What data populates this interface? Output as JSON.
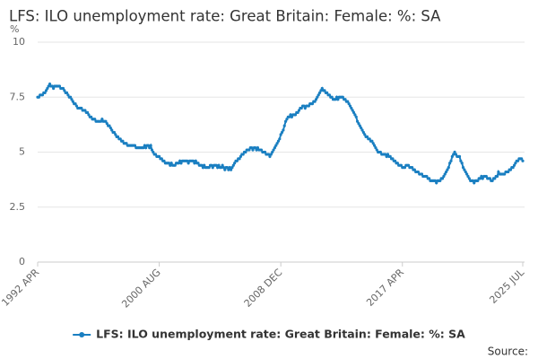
{
  "chart_data": {
    "type": "line",
    "title": "LFS: ILO unemployment rate: Great Britain: Female: %: SA",
    "y_label": "%",
    "source_label": "Source:",
    "categories": [
      "1992 APR",
      null,
      null,
      null,
      null,
      null,
      null,
      null,
      null,
      null,
      null,
      null,
      null,
      null,
      null,
      null,
      null,
      null,
      null,
      null,
      null,
      null,
      null,
      null,
      null,
      null,
      null,
      null,
      null,
      null,
      null,
      null,
      null,
      null,
      null,
      null,
      null,
      null,
      null,
      null,
      null,
      null,
      null,
      null,
      null,
      null,
      null,
      null,
      null,
      null,
      null,
      null,
      null,
      null,
      null,
      null,
      null,
      null,
      null,
      null,
      null,
      null,
      null,
      null,
      null,
      null,
      null,
      null,
      null,
      null,
      null,
      null,
      null,
      null,
      null,
      null,
      null,
      null,
      null,
      null,
      null,
      null,
      null,
      null,
      null,
      null,
      null,
      null,
      null,
      null,
      null,
      null,
      null,
      null,
      null,
      null,
      null,
      null,
      null,
      null,
      "2000 AUG",
      null,
      null,
      null,
      null,
      null,
      null,
      null,
      null,
      null,
      null,
      null,
      null,
      null,
      null,
      null,
      null,
      null,
      null,
      null,
      null,
      null,
      null,
      null,
      null,
      null,
      null,
      null,
      null,
      null,
      null,
      null,
      null,
      null,
      null,
      null,
      null,
      null,
      null,
      null,
      null,
      null,
      null,
      null,
      null,
      null,
      null,
      null,
      null,
      null,
      null,
      null,
      null,
      null,
      null,
      null,
      null,
      null,
      null,
      null,
      null,
      null,
      null,
      null,
      null,
      null,
      null,
      null,
      null,
      null,
      null,
      null,
      null,
      null,
      null,
      null,
      null,
      null,
      null,
      null,
      null,
      null,
      null,
      null,
      null,
      null,
      null,
      null,
      null,
      null,
      null,
      null,
      null,
      null,
      null,
      null,
      null,
      null,
      null,
      null,
      "2008 DEC",
      null,
      null,
      null,
      null,
      null,
      null,
      null,
      null,
      null,
      null,
      null,
      null,
      null,
      null,
      null,
      null,
      null,
      null,
      null,
      null,
      null,
      null,
      null,
      null,
      null,
      null,
      null,
      null,
      null,
      null,
      null,
      null,
      null,
      null,
      null,
      null,
      null,
      null,
      null,
      null,
      null,
      null,
      null,
      null,
      null,
      null,
      null,
      null,
      null,
      null,
      null,
      null,
      null,
      null,
      null,
      null,
      null,
      null,
      null,
      null,
      null,
      null,
      null,
      null,
      null,
      null,
      null,
      null,
      null,
      null,
      null,
      null,
      null,
      null,
      null,
      null,
      null,
      null,
      null,
      null,
      null,
      null,
      null,
      null,
      null,
      null,
      null,
      null,
      null,
      null,
      null,
      null,
      null,
      null,
      null,
      null,
      null,
      null,
      null,
      "2017 APR",
      null,
      null,
      null,
      null,
      null,
      null,
      null,
      null,
      null,
      null,
      null,
      null,
      null,
      null,
      null,
      null,
      null,
      null,
      null,
      null,
      null,
      null,
      null,
      null,
      null,
      null,
      null,
      null,
      null,
      null,
      null,
      null,
      null,
      null,
      null,
      null,
      null,
      null,
      null,
      null,
      null,
      null,
      null,
      null,
      null,
      null,
      null,
      null,
      null,
      null,
      null,
      null,
      null,
      null,
      null,
      null,
      null,
      null,
      null,
      null,
      null,
      null,
      null,
      null,
      null,
      null,
      null,
      null,
      null,
      null,
      null,
      null,
      null,
      null,
      null,
      null,
      null,
      null,
      null,
      null,
      null,
      null,
      null,
      null,
      null,
      null,
      null,
      null,
      null,
      null,
      null,
      null,
      null,
      null,
      null,
      null,
      null,
      null,
      "2025 JUL"
    ],
    "series": [
      {
        "name": "LFS: ILO unemployment rate: Great Britain: Female: %: SA",
        "color": "#1a7fc1",
        "values": [
          7.5,
          7.5,
          7.6,
          7.6,
          7.6,
          7.7,
          7.7,
          7.8,
          7.9,
          8.0,
          8.1,
          8.0,
          8.0,
          7.9,
          8.0,
          8.0,
          8.0,
          8.0,
          8.0,
          7.9,
          7.9,
          7.9,
          7.8,
          7.7,
          7.7,
          7.6,
          7.5,
          7.5,
          7.4,
          7.3,
          7.2,
          7.2,
          7.1,
          7.0,
          7.0,
          7.0,
          7.0,
          6.9,
          6.9,
          6.9,
          6.8,
          6.8,
          6.7,
          6.6,
          6.6,
          6.5,
          6.5,
          6.5,
          6.4,
          6.4,
          6.4,
          6.4,
          6.4,
          6.5,
          6.4,
          6.4,
          6.4,
          6.3,
          6.2,
          6.2,
          6.1,
          6.0,
          5.9,
          5.9,
          5.8,
          5.7,
          5.7,
          5.6,
          5.6,
          5.5,
          5.5,
          5.4,
          5.4,
          5.4,
          5.3,
          5.3,
          5.3,
          5.3,
          5.3,
          5.3,
          5.3,
          5.2,
          5.2,
          5.2,
          5.2,
          5.2,
          5.2,
          5.2,
          5.3,
          5.2,
          5.3,
          5.3,
          5.2,
          5.3,
          5.1,
          5.0,
          4.9,
          4.9,
          4.8,
          4.8,
          4.8,
          4.7,
          4.7,
          4.6,
          4.6,
          4.5,
          4.5,
          4.5,
          4.5,
          4.4,
          4.5,
          4.4,
          4.4,
          4.4,
          4.5,
          4.5,
          4.5,
          4.6,
          4.5,
          4.6,
          4.6,
          4.6,
          4.6,
          4.6,
          4.5,
          4.6,
          4.6,
          4.6,
          4.6,
          4.5,
          4.6,
          4.5,
          4.5,
          4.4,
          4.4,
          4.4,
          4.3,
          4.4,
          4.3,
          4.3,
          4.3,
          4.3,
          4.4,
          4.4,
          4.3,
          4.4,
          4.4,
          4.4,
          4.3,
          4.4,
          4.3,
          4.3,
          4.4,
          4.3,
          4.2,
          4.3,
          4.3,
          4.2,
          4.3,
          4.2,
          4.3,
          4.4,
          4.5,
          4.6,
          4.6,
          4.7,
          4.7,
          4.8,
          4.9,
          4.9,
          5.0,
          5.0,
          5.1,
          5.1,
          5.1,
          5.2,
          5.2,
          5.1,
          5.2,
          5.2,
          5.1,
          5.2,
          5.1,
          5.1,
          5.1,
          5.0,
          5.0,
          5.0,
          4.9,
          4.9,
          4.9,
          4.8,
          4.9,
          5.0,
          5.1,
          5.2,
          5.3,
          5.4,
          5.5,
          5.6,
          5.8,
          5.9,
          6.0,
          6.2,
          6.4,
          6.5,
          6.6,
          6.6,
          6.7,
          6.6,
          6.7,
          6.7,
          6.7,
          6.8,
          6.8,
          6.9,
          7.0,
          7.0,
          7.1,
          7.1,
          7.0,
          7.1,
          7.1,
          7.1,
          7.2,
          7.2,
          7.2,
          7.3,
          7.3,
          7.4,
          7.5,
          7.6,
          7.7,
          7.8,
          7.9,
          7.8,
          7.8,
          7.7,
          7.7,
          7.6,
          7.6,
          7.5,
          7.5,
          7.4,
          7.4,
          7.4,
          7.5,
          7.4,
          7.5,
          7.5,
          7.5,
          7.5,
          7.4,
          7.4,
          7.3,
          7.3,
          7.2,
          7.1,
          7.0,
          6.9,
          6.8,
          6.7,
          6.6,
          6.4,
          6.3,
          6.2,
          6.1,
          6.0,
          5.9,
          5.8,
          5.7,
          5.7,
          5.6,
          5.6,
          5.5,
          5.5,
          5.4,
          5.3,
          5.2,
          5.1,
          5.0,
          5.0,
          5.0,
          4.9,
          4.9,
          4.9,
          4.9,
          4.8,
          4.9,
          4.8,
          4.8,
          4.7,
          4.7,
          4.6,
          4.6,
          4.5,
          4.5,
          4.4,
          4.4,
          4.4,
          4.3,
          4.3,
          4.3,
          4.4,
          4.4,
          4.4,
          4.3,
          4.3,
          4.3,
          4.2,
          4.2,
          4.1,
          4.1,
          4.1,
          4.0,
          4.0,
          4.0,
          3.9,
          3.9,
          3.9,
          3.9,
          3.8,
          3.8,
          3.7,
          3.7,
          3.7,
          3.7,
          3.7,
          3.6,
          3.7,
          3.7,
          3.7,
          3.8,
          3.8,
          3.9,
          4.0,
          4.1,
          4.2,
          4.3,
          4.5,
          4.6,
          4.8,
          4.9,
          5.0,
          4.9,
          4.8,
          4.8,
          4.8,
          4.6,
          4.5,
          4.3,
          4.2,
          4.1,
          4.0,
          3.9,
          3.8,
          3.7,
          3.7,
          3.7,
          3.6,
          3.7,
          3.7,
          3.7,
          3.8,
          3.8,
          3.9,
          3.8,
          3.9,
          3.9,
          3.9,
          3.8,
          3.8,
          3.8,
          3.7,
          3.7,
          3.8,
          3.8,
          3.9,
          3.9,
          4.1,
          4.0,
          4.0,
          4.0,
          4.0,
          4.0,
          4.1,
          4.1,
          4.1,
          4.2,
          4.2,
          4.3,
          4.3,
          4.4,
          4.5,
          4.6,
          4.6,
          4.7,
          4.7,
          4.7,
          4.6
        ]
      }
    ],
    "ylim": [
      0,
      10
    ],
    "yticks": [
      0,
      2.5,
      5,
      7.5,
      10
    ],
    "grid": true,
    "legend": "bottom"
  }
}
